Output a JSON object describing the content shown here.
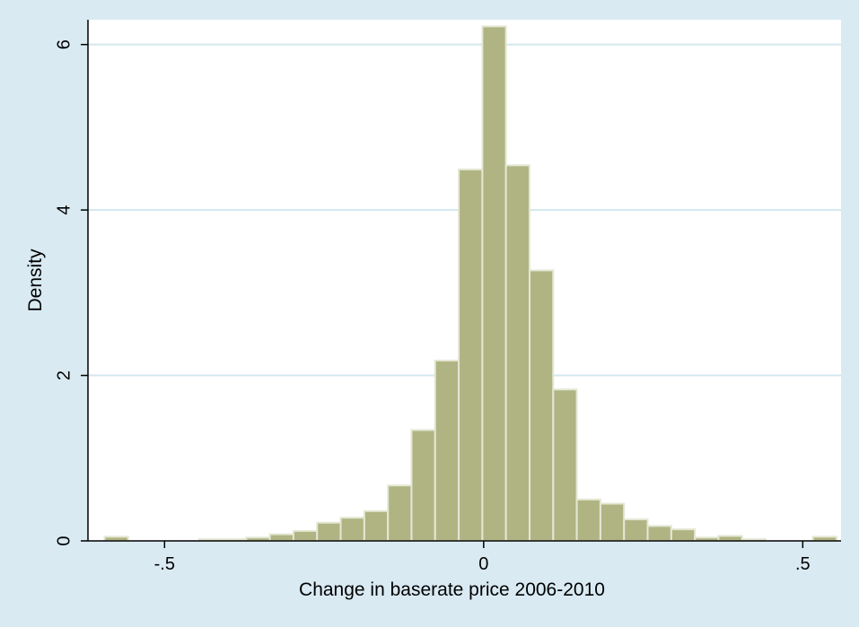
{
  "chart_data": {
    "type": "bar",
    "xlabel": "Change in baserate price 2006-2010",
    "ylabel": "Density",
    "xlim": [
      -0.62,
      0.56
    ],
    "ylim": [
      0,
      6.3
    ],
    "xticks": [
      {
        "value": -0.5,
        "label": "-.5"
      },
      {
        "value": 0,
        "label": "0"
      },
      {
        "value": 0.5,
        "label": ".5"
      }
    ],
    "yticks": [
      {
        "value": 0,
        "label": "0"
      },
      {
        "value": 2,
        "label": "2"
      },
      {
        "value": 4,
        "label": "4"
      },
      {
        "value": 6,
        "label": "6"
      }
    ],
    "grid": "horizontal",
    "bin_width": 0.0369,
    "bins": [
      {
        "x0": -0.594,
        "density": 0.05
      },
      {
        "x0": -0.557,
        "density": 0
      },
      {
        "x0": -0.52,
        "density": 0
      },
      {
        "x0": -0.483,
        "density": 0
      },
      {
        "x0": -0.446,
        "density": 0.02
      },
      {
        "x0": -0.409,
        "density": 0.02
      },
      {
        "x0": -0.372,
        "density": 0.04
      },
      {
        "x0": -0.335,
        "density": 0.08
      },
      {
        "x0": -0.298,
        "density": 0.12
      },
      {
        "x0": -0.261,
        "density": 0.22
      },
      {
        "x0": -0.224,
        "density": 0.28
      },
      {
        "x0": -0.187,
        "density": 0.36
      },
      {
        "x0": -0.15,
        "density": 0.67
      },
      {
        "x0": -0.113,
        "density": 1.34
      },
      {
        "x0": -0.076,
        "density": 2.18
      },
      {
        "x0": -0.039,
        "density": 4.49
      },
      {
        "x0": -0.002,
        "density": 6.22
      },
      {
        "x0": 0.035,
        "density": 4.54
      },
      {
        "x0": 0.072,
        "density": 3.27
      },
      {
        "x0": 0.109,
        "density": 1.83
      },
      {
        "x0": 0.146,
        "density": 0.5
      },
      {
        "x0": 0.183,
        "density": 0.45
      },
      {
        "x0": 0.22,
        "density": 0.26
      },
      {
        "x0": 0.257,
        "density": 0.18
      },
      {
        "x0": 0.294,
        "density": 0.14
      },
      {
        "x0": 0.331,
        "density": 0.04
      },
      {
        "x0": 0.368,
        "density": 0.06
      },
      {
        "x0": 0.405,
        "density": 0.02
      },
      {
        "x0": 0.442,
        "density": 0
      },
      {
        "x0": 0.479,
        "density": 0
      },
      {
        "x0": 0.516,
        "density": 0.05
      }
    ],
    "colors": {
      "background": "#d9eaf3",
      "plot_area": "#ffffff",
      "bar_fill": "#afb482",
      "bar_edge": "#e4e7d3",
      "gridline": "#d3e6ef",
      "axis": "#000000"
    }
  }
}
